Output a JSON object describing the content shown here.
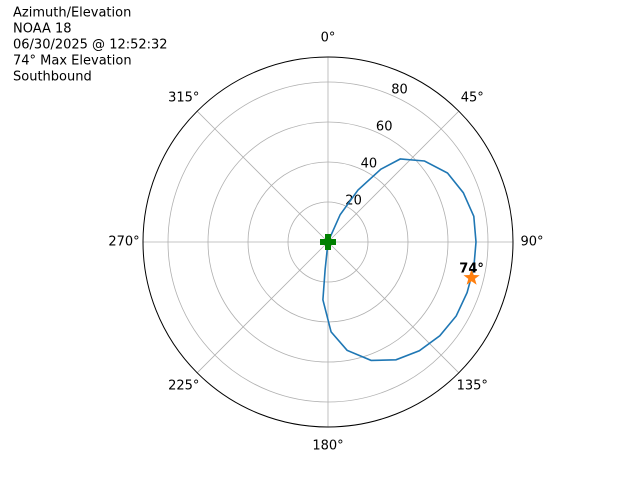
{
  "chart_data": {
    "type": "polar",
    "title_lines": [
      "Azimuth/Elevation",
      "NOAA 18",
      "06/30/2025 @ 12:52:32",
      "74° Max Elevation",
      "Southbound"
    ],
    "theta_direction": "clockwise",
    "theta_zero": "top",
    "xticks": [
      {
        "value": 0,
        "label": "0°"
      },
      {
        "value": 45,
        "label": "45°"
      },
      {
        "value": 90,
        "label": "90°"
      },
      {
        "value": 135,
        "label": "135°"
      },
      {
        "value": 180,
        "label": "180°"
      },
      {
        "value": 225,
        "label": "225°"
      },
      {
        "value": 270,
        "label": "270°"
      },
      {
        "value": 315,
        "label": "315°"
      }
    ],
    "ylim": [
      0,
      92.5
    ],
    "yticks": [
      20,
      40,
      60,
      80
    ],
    "grid": true,
    "track": {
      "color": "#1f77b4",
      "theta": [
        20,
        24,
        30,
        36,
        41,
        50,
        60,
        70,
        80,
        90,
        100,
        110,
        120,
        130,
        140,
        150,
        160,
        170,
        178,
        185,
        186,
        190
      ],
      "r": [
        0,
        15,
        30,
        45,
        55,
        63,
        69,
        72,
        74,
        74,
        74,
        74,
        74,
        73,
        71,
        68,
        63,
        55,
        45,
        29,
        14,
        0
      ]
    },
    "max_point": {
      "color": "#ff7f0e",
      "theta": 104,
      "r": 74,
      "value_label": "74°"
    },
    "start_point": {
      "color": "#008000",
      "theta": 0,
      "r": 0
    }
  }
}
